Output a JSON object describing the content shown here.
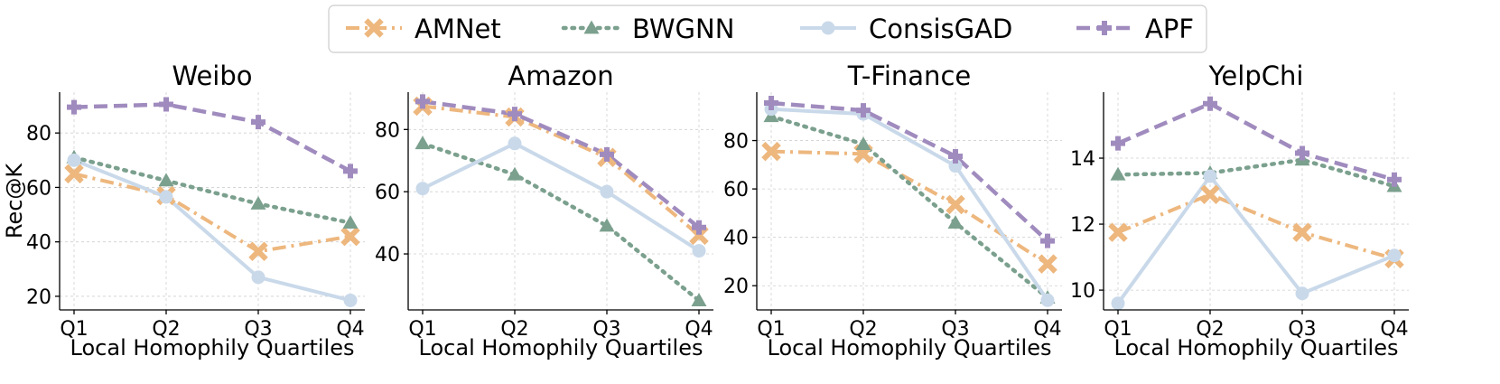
{
  "legend": {
    "placement": "top-center",
    "entries": [
      "AMNet",
      "BWGNN",
      "ConsisGAD",
      "APF"
    ]
  },
  "series_styles": [
    {
      "name": "AMNet",
      "color": "#EDB77E",
      "marker": "x",
      "dash": "dashdot"
    },
    {
      "name": "BWGNN",
      "color": "#7BA08E",
      "marker": "triangle",
      "dash": "dotted"
    },
    {
      "name": "ConsisGAD",
      "color": "#C9D9EA",
      "marker": "circle",
      "dash": "solid"
    },
    {
      "name": "APF",
      "color": "#A08BBE",
      "marker": "plus",
      "dash": "dashed"
    }
  ],
  "chart_data": [
    {
      "type": "line",
      "title": "Weibo",
      "xlabel": "Local Homophily Quartiles",
      "ylabel": "Rec@K",
      "categories": [
        "Q1",
        "Q2",
        "Q3",
        "Q4"
      ],
      "ylim": [
        15,
        95
      ],
      "yticks": [
        20,
        40,
        60,
        80
      ],
      "grid": true,
      "series": [
        {
          "name": "AMNet",
          "values": [
            65,
            57,
            36.5,
            42
          ]
        },
        {
          "name": "BWGNN",
          "values": [
            71,
            62.5,
            54,
            47
          ]
        },
        {
          "name": "ConsisGAD",
          "values": [
            70,
            56.5,
            27,
            18.5
          ]
        },
        {
          "name": "APF",
          "values": [
            89.5,
            90.5,
            84,
            66
          ]
        }
      ]
    },
    {
      "type": "line",
      "title": "Amazon",
      "xlabel": "Local Homophily Quartiles",
      "ylabel": "",
      "categories": [
        "Q1",
        "Q2",
        "Q3",
        "Q4"
      ],
      "ylim": [
        22,
        92
      ],
      "yticks": [
        40,
        60,
        80
      ],
      "grid": true,
      "series": [
        {
          "name": "AMNet",
          "values": [
            87.5,
            84,
            71,
            46
          ]
        },
        {
          "name": "BWGNN",
          "values": [
            75.5,
            65.5,
            49,
            25
          ]
        },
        {
          "name": "ConsisGAD",
          "values": [
            61,
            75.5,
            60,
            41
          ]
        },
        {
          "name": "APF",
          "values": [
            89,
            85,
            72,
            48.5
          ]
        }
      ]
    },
    {
      "type": "line",
      "title": "T-Finance",
      "xlabel": "Local Homophily Quartiles",
      "ylabel": "",
      "categories": [
        "Q1",
        "Q2",
        "Q3",
        "Q4"
      ],
      "ylim": [
        10,
        100
      ],
      "yticks": [
        20,
        40,
        60,
        80
      ],
      "grid": true,
      "series": [
        {
          "name": "AMNet",
          "values": [
            75.5,
            74.5,
            53.5,
            29
          ]
        },
        {
          "name": "BWGNN",
          "values": [
            90,
            78.5,
            46,
            15
          ]
        },
        {
          "name": "ConsisGAD",
          "values": [
            93,
            91,
            69.5,
            14
          ]
        },
        {
          "name": "APF",
          "values": [
            95.5,
            92.5,
            73.5,
            38.5
          ]
        }
      ]
    },
    {
      "type": "line",
      "title": "YelpChi",
      "xlabel": "Local Homophily Quartiles",
      "ylabel": "",
      "categories": [
        "Q1",
        "Q2",
        "Q3",
        "Q4"
      ],
      "ylim": [
        9.4,
        16
      ],
      "yticks": [
        10,
        12,
        14
      ],
      "grid": true,
      "series": [
        {
          "name": "AMNet",
          "values": [
            11.75,
            12.9,
            11.75,
            10.95
          ]
        },
        {
          "name": "BWGNN",
          "values": [
            13.5,
            13.55,
            13.95,
            13.15
          ]
        },
        {
          "name": "ConsisGAD",
          "values": [
            9.6,
            13.45,
            9.9,
            11.05
          ]
        },
        {
          "name": "APF",
          "values": [
            14.45,
            15.65,
            14.15,
            13.35
          ]
        }
      ]
    }
  ]
}
